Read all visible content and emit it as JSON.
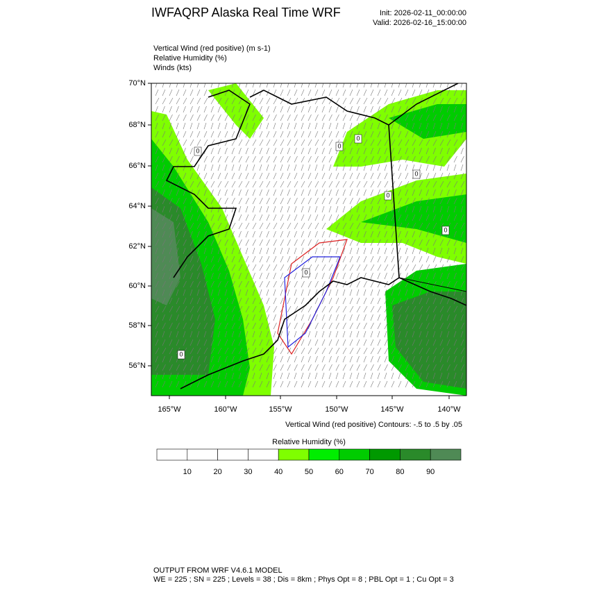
{
  "header": {
    "title": "IWFAQRP Alaska Real Time WRF",
    "init": "Init: 2026-02-11_00:00:00",
    "valid": "Valid: 2026-02-16_15:00:00"
  },
  "fields": [
    "Vertical Wind (red positive)   (m s-1)",
    "Relative Humidity   (%)",
    "Winds   (kts)"
  ],
  "map": {
    "lat_labels": [
      "70°N",
      "68°N",
      "66°N",
      "64°N",
      "62°N",
      "60°N",
      "58°N",
      "56°N"
    ],
    "lon_labels": [
      "165°W",
      "160°W",
      "155°W",
      "150°W",
      "145°W",
      "140°W"
    ],
    "contour_labels": [
      "0",
      "0",
      "0",
      "0",
      "0",
      "0",
      "0",
      "0"
    ],
    "contour_note": "Vertical Wind (red positive) Contours: -.5 to .5 by .05"
  },
  "colorbar": {
    "title": "Relative Humidity  (%)",
    "ticks": [
      10,
      20,
      30,
      40,
      50,
      60,
      70,
      80,
      90
    ],
    "colors": [
      "#ffffff",
      "#ffffff",
      "#ffffff",
      "#ffffff",
      "#7fff00",
      "#00ee00",
      "#00cc00",
      "#009900",
      "#2a8a2a",
      "#4f8a55"
    ]
  },
  "footer": {
    "line1": "OUTPUT FROM WRF V4.6.1 MODEL",
    "line2": "WE = 225 ; SN = 225 ; Levels = 38 ; Dis = 8km ; Phys Opt = 8 ; PBL Opt = 1 ; Cu Opt = 3"
  }
}
